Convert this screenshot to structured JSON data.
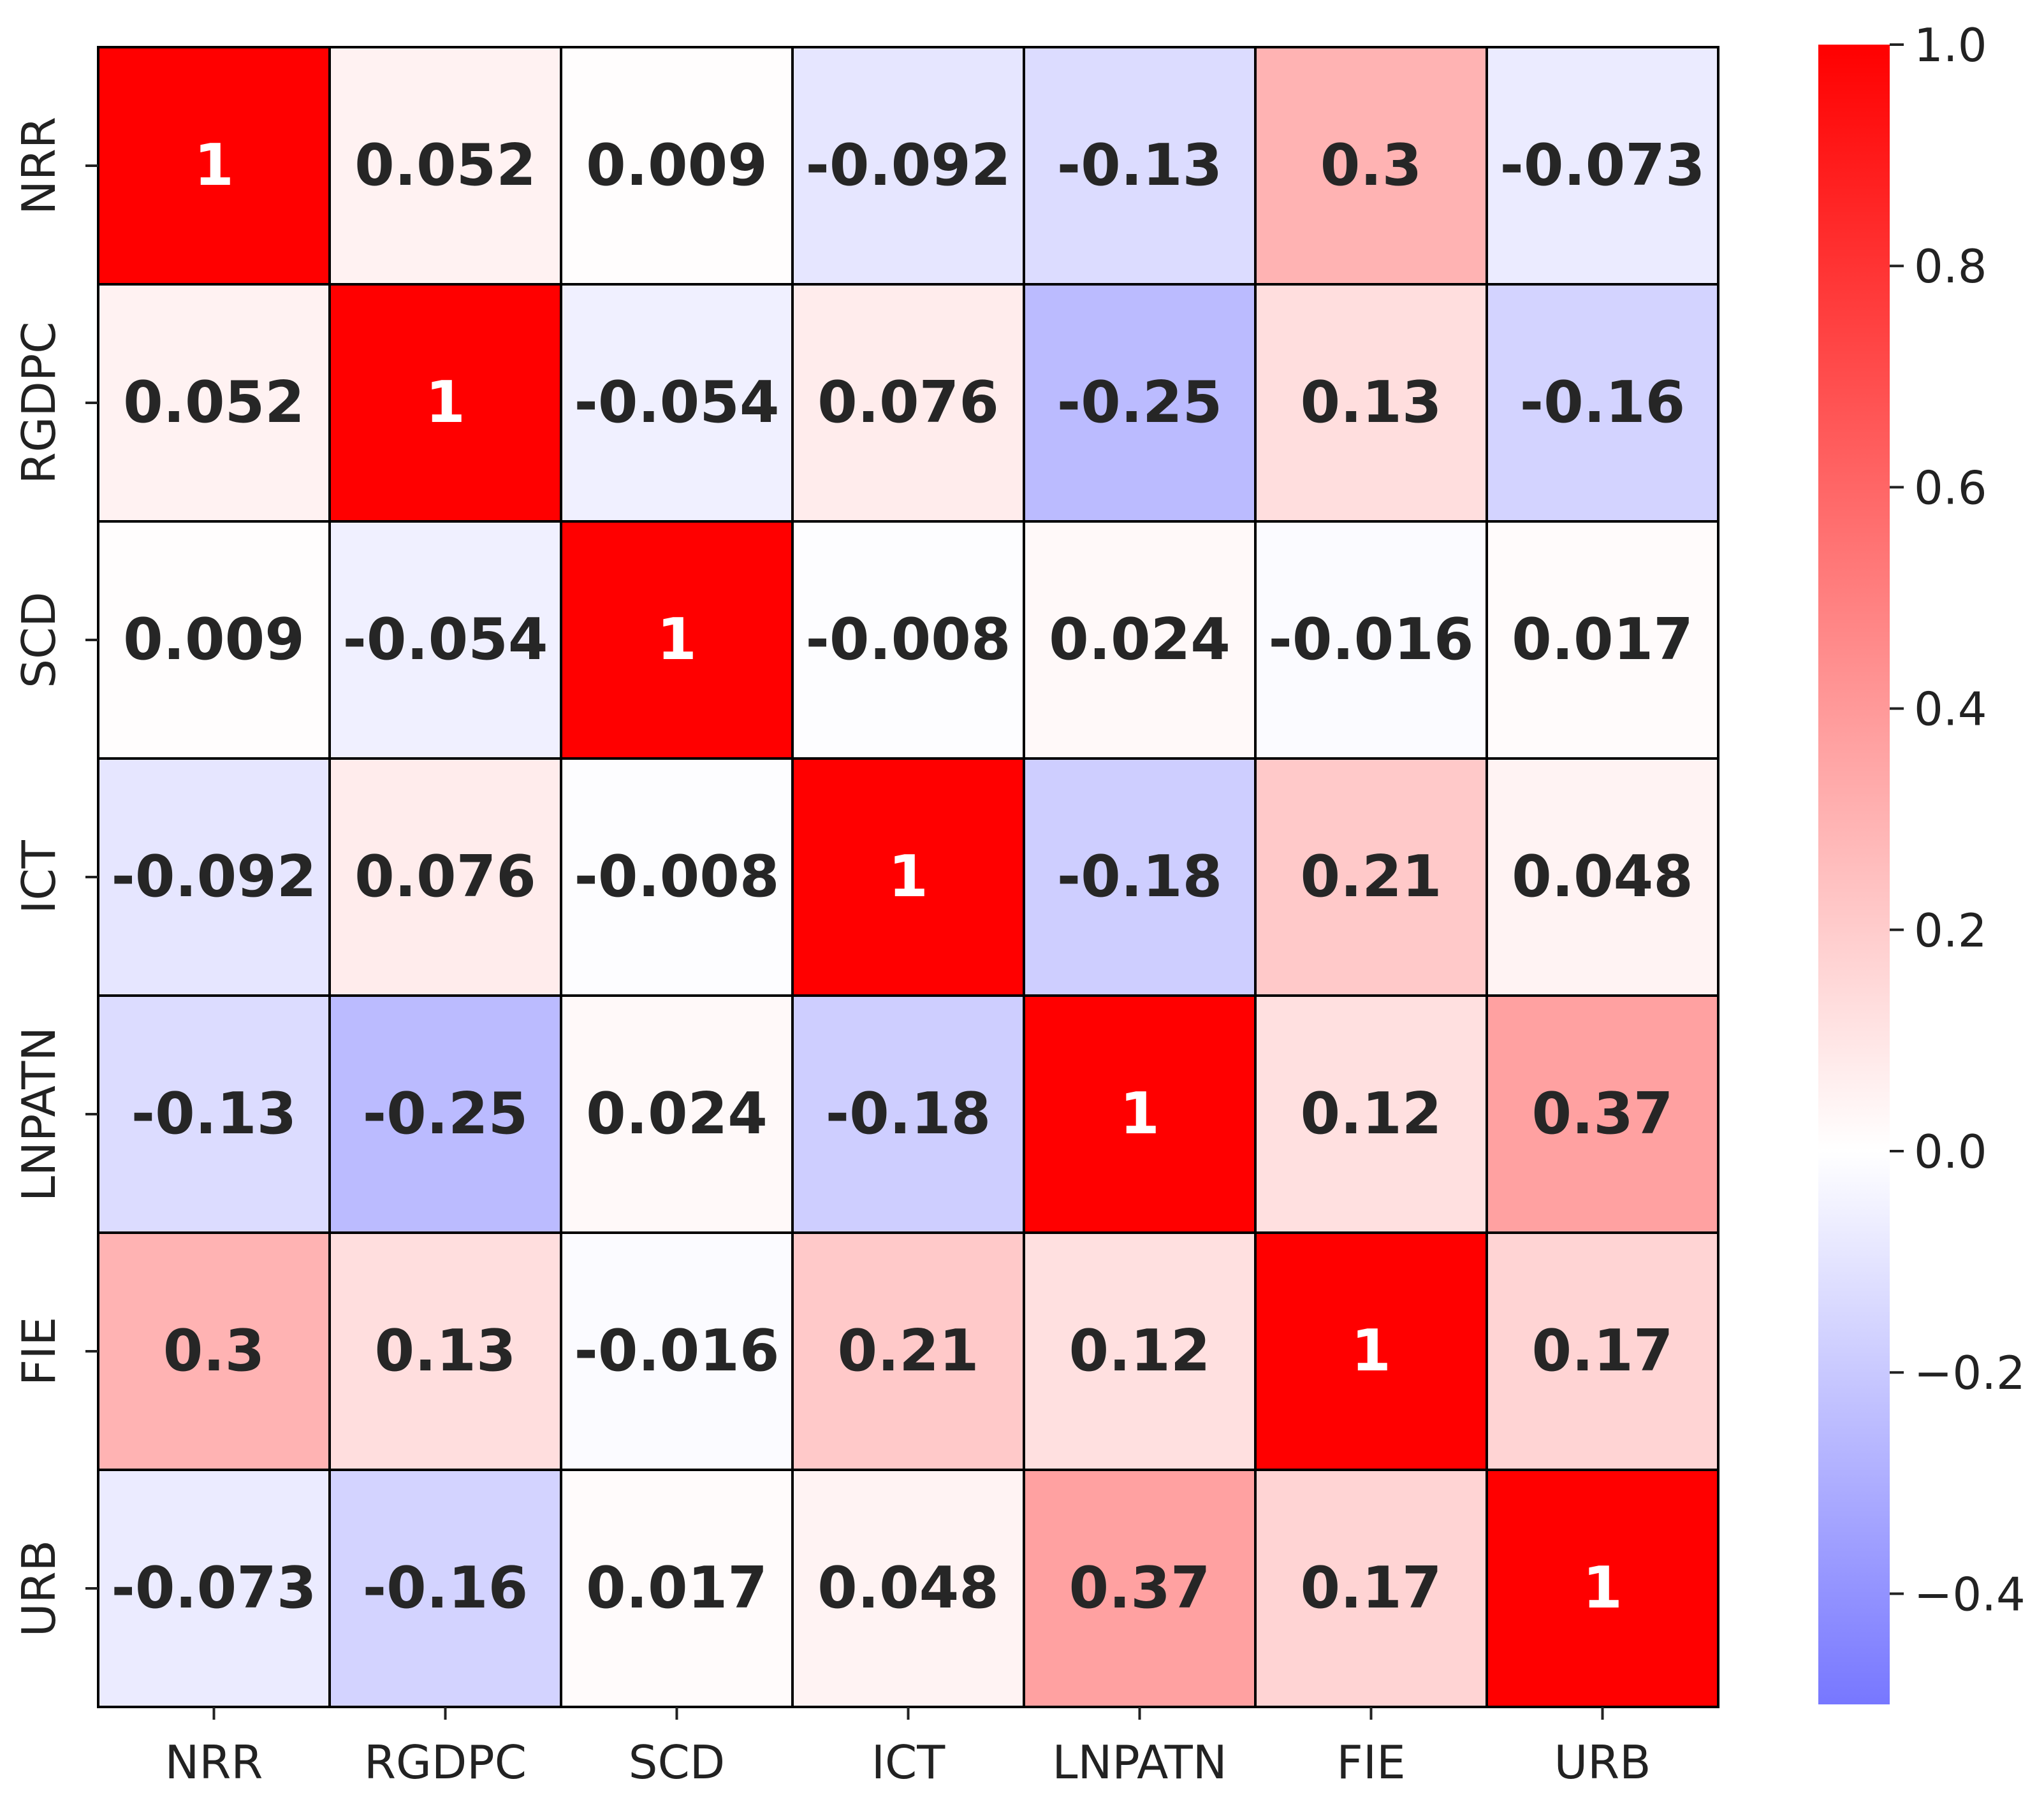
{
  "chart_data": {
    "type": "heatmap",
    "variables": [
      "NRR",
      "RGDPC",
      "SCD",
      "ICT",
      "LNPATN",
      "FIE",
      "URB"
    ],
    "matrix": [
      [
        1,
        0.052,
        0.009,
        -0.092,
        -0.13,
        0.3,
        -0.073
      ],
      [
        0.052,
        1,
        -0.054,
        0.076,
        -0.25,
        0.13,
        -0.16
      ],
      [
        0.009,
        -0.054,
        1,
        -0.008,
        0.024,
        -0.016,
        0.017
      ],
      [
        -0.092,
        0.076,
        -0.008,
        1,
        -0.18,
        0.21,
        0.048
      ],
      [
        -0.13,
        -0.25,
        0.024,
        -0.18,
        1,
        0.12,
        0.37
      ],
      [
        0.3,
        0.13,
        -0.016,
        0.21,
        0.12,
        1,
        0.17
      ],
      [
        -0.073,
        -0.16,
        0.017,
        0.048,
        0.37,
        0.17,
        1
      ]
    ],
    "annotations": [
      [
        "1",
        "0.052",
        "0.009",
        "-0.092",
        "-0.13",
        "0.3",
        "-0.073"
      ],
      [
        "0.052",
        "1",
        "-0.054",
        "0.076",
        "-0.25",
        "0.13",
        "-0.16"
      ],
      [
        "0.009",
        "-0.054",
        "1",
        "-0.008",
        "0.024",
        "-0.016",
        "0.017"
      ],
      [
        "-0.092",
        "0.076",
        "-0.008",
        "1",
        "-0.18",
        "0.21",
        "0.048"
      ],
      [
        "-0.13",
        "-0.25",
        "0.024",
        "-0.18",
        "1",
        "0.12",
        "0.37"
      ],
      [
        "0.3",
        "0.13",
        "-0.016",
        "0.21",
        "0.12",
        "1",
        "0.17"
      ],
      [
        "-0.073",
        "-0.16",
        "0.017",
        "0.048",
        "0.37",
        "0.17",
        "1"
      ]
    ],
    "colorbar": {
      "vmin": -0.5,
      "vmax": 1.0,
      "ticks": [
        1.0,
        0.8,
        0.6,
        0.4,
        0.2,
        0.0,
        -0.2,
        -0.4
      ],
      "tick_labels": [
        "1.0",
        "0.8",
        "0.6",
        "0.4",
        "0.2",
        "0.0",
        "−0.2",
        "−0.4"
      ]
    },
    "colormap": {
      "low": "#7777ff",
      "mid": "#ffffff",
      "high": "#ff0000"
    },
    "cell_border_color": "#000000",
    "annotation_color_dark": "#262626",
    "annotation_color_light": "#ffffff"
  }
}
